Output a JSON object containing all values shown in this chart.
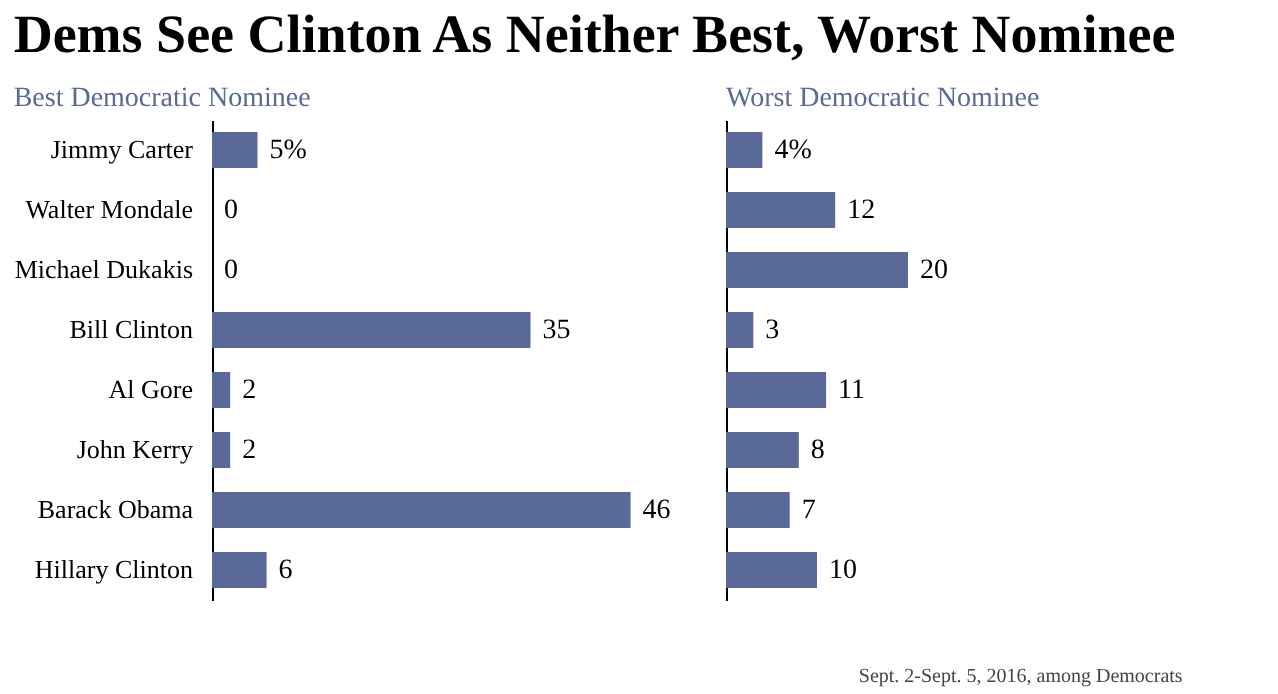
{
  "chart_data": [
    {
      "type": "bar",
      "orientation": "horizontal",
      "title": "Dems See Clinton As Neither Best, Worst Nominee",
      "subtitle": "Best Democratic Nominee",
      "categories": [
        "Jimmy Carter",
        "Walter Mondale",
        "Michael Dukakis",
        "Bill Clinton",
        "Al Gore",
        "John Kerry",
        "Barack Obama",
        "Hillary Clinton"
      ],
      "values": [
        5,
        0,
        0,
        35,
        2,
        2,
        46,
        6
      ],
      "value_labels": [
        "5%",
        "0",
        "0",
        "35",
        "2",
        "2",
        "46",
        "6"
      ],
      "color": "#5a6a98",
      "data_labels": true,
      "tick_labels": "y"
    },
    {
      "type": "bar",
      "orientation": "horizontal",
      "subtitle": "Worst Democratic Nominee",
      "categories": [
        null,
        null,
        null,
        null,
        null,
        null,
        null,
        null
      ],
      "values": [
        4,
        12,
        20,
        3,
        11,
        8,
        7,
        10
      ],
      "value_labels": [
        "4%",
        "12",
        "20",
        "3",
        "11",
        "8",
        "7",
        "10"
      ],
      "color": "#5a6a98",
      "data_labels": true,
      "tick_labels": false,
      "annotations": [
        "Sept. 2-Sept. 5, 2016, among Democrats"
      ]
    }
  ]
}
